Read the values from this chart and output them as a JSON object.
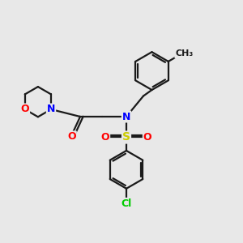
{
  "bg_color": "#e8e8e8",
  "bond_color": "#1a1a1a",
  "N_color": "#0000ff",
  "O_color": "#ff0000",
  "S_color": "#cccc00",
  "Cl_color": "#00cc00",
  "line_width": 1.6,
  "font_size": 9,
  "figsize": [
    3.0,
    3.0
  ],
  "dpi": 100,
  "xlim": [
    0,
    10
  ],
  "ylim": [
    0,
    10
  ]
}
